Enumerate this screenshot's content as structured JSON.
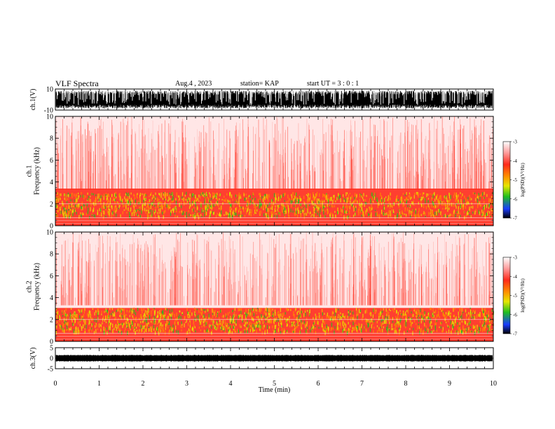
{
  "header": {
    "title": "VLF Spectra",
    "date": "Aug.4 , 2023",
    "station": "station= KAP",
    "start": "start UT = 3 : 0 : 1"
  },
  "colors": {
    "white": "#ffffff",
    "red": "#ff2a1a",
    "light_red": "#ff9a9a",
    "orange": "#ff8c00",
    "yellow": "#e6e600",
    "green": "#1fbf1f",
    "blue": "#1a3cff",
    "black": "#000000"
  },
  "chart_data": [
    {
      "id": "ch1-waveform",
      "type": "line",
      "ylabel": "ch.1(V)",
      "ylim": [
        -10,
        10
      ],
      "yticks": [
        "10",
        "-10"
      ],
      "xlim": [
        0,
        10
      ]
    },
    {
      "id": "ch1-spectrogram",
      "type": "heatmap",
      "ylabel": "ch.1\nFrequency (kHz)",
      "ylim": [
        0,
        10
      ],
      "yticks": [
        "0",
        "2",
        "4",
        "6",
        "8",
        "10"
      ],
      "xlim": [
        0,
        10
      ],
      "colorbar": {
        "label": "log(PSD)(V²/Hz)",
        "range": [
          -7,
          -3
        ],
        "ticks": [
          "-3",
          "-4",
          "-5",
          "-6",
          "-7"
        ]
      }
    },
    {
      "id": "ch2-spectrogram",
      "type": "heatmap",
      "ylabel": "ch.2\nFrequency (kHz)",
      "ylim": [
        0,
        10
      ],
      "yticks": [
        "0",
        "2",
        "4",
        "6",
        "8",
        "10"
      ],
      "xlim": [
        0,
        10
      ],
      "colorbar": {
        "label": "log(PSD)(V²/Hz)",
        "range": [
          -7,
          -3
        ],
        "ticks": [
          "-3",
          "-4",
          "-5",
          "-6",
          "-7"
        ]
      }
    },
    {
      "id": "ch3-waveform",
      "type": "line",
      "ylabel": "ch.3(V)",
      "ylim": [
        -5,
        5
      ],
      "yticks": [
        "5",
        "0",
        "-5"
      ],
      "xlim": [
        0,
        10
      ]
    }
  ],
  "xaxis": {
    "label": "Time (min)",
    "ticks": [
      "0",
      "1",
      "2",
      "3",
      "4",
      "5",
      "6",
      "7",
      "8",
      "9",
      "10"
    ]
  }
}
